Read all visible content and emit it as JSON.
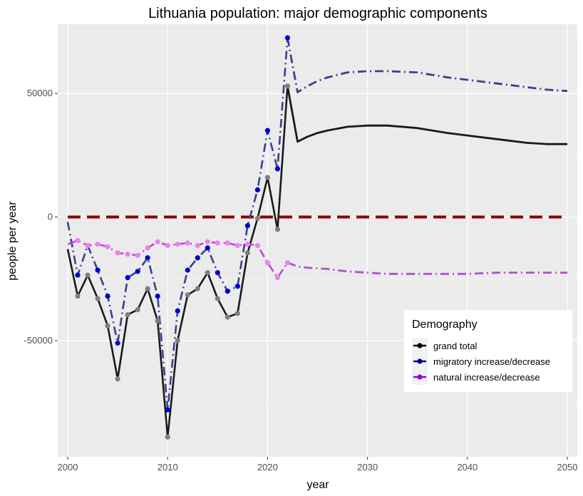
{
  "chart_data": {
    "type": "line",
    "title": "Lithuania population: major demographic components",
    "xlabel": "year",
    "ylabel": "people per year",
    "xlim": [
      1999,
      2051
    ],
    "ylim": [
      -97000,
      78000
    ],
    "x_ticks": [
      2000,
      2010,
      2020,
      2030,
      2040,
      2050
    ],
    "x_tick_labels": [
      "2000",
      "2010",
      "2020",
      "2030",
      "2040",
      "2050"
    ],
    "y_ticks": [
      -50000,
      0,
      50000
    ],
    "y_tick_labels": [
      "-50000",
      "0",
      "50000"
    ],
    "grid": true,
    "zero_line": {
      "y": 0,
      "x_range": [
        2000,
        2050
      ],
      "color": "#8b0000"
    },
    "legend": {
      "title": "Demography",
      "position": "bottom-right",
      "entries": [
        "grand total",
        "migratory increase/decrease",
        "natural increase/decrease"
      ]
    },
    "series": [
      {
        "name": "grand total",
        "color": "#1a1a1a",
        "observed_color": "#7f7f7f",
        "style": "solid",
        "observed": {
          "x": [
            2000,
            2001,
            2002,
            2003,
            2004,
            2005,
            2006,
            2007,
            2008,
            2009,
            2010,
            2011,
            2012,
            2013,
            2014,
            2015,
            2016,
            2017,
            2018,
            2019,
            2020,
            2021,
            2022
          ],
          "y": [
            -13000,
            -32000,
            -23500,
            -33000,
            -44000,
            -65500,
            -39500,
            -37500,
            -29000,
            -42000,
            -89000,
            -50000,
            -31500,
            -29000,
            -22500,
            -33000,
            -40500,
            -39000,
            -14500,
            -500,
            16000,
            -5000,
            53000
          ]
        },
        "projected": {
          "x": [
            2022,
            2023,
            2024,
            2025,
            2026,
            2028,
            2030,
            2032,
            2035,
            2038,
            2040,
            2043,
            2046,
            2048,
            2050
          ],
          "y": [
            53000,
            30500,
            32500,
            34000,
            35000,
            36500,
            37000,
            37000,
            36000,
            34000,
            33000,
            31500,
            30000,
            29500,
            29500
          ]
        }
      },
      {
        "name": "migratory increase/decrease",
        "color": "#3a3f91",
        "observed_color": "#0000cd",
        "style": "dash-dot",
        "observed": {
          "x": [
            2000,
            2001,
            2002,
            2003,
            2004,
            2005,
            2006,
            2007,
            2008,
            2009,
            2010,
            2011,
            2012,
            2013,
            2014,
            2015,
            2016,
            2017,
            2018,
            2019,
            2020,
            2021,
            2022
          ],
          "y": [
            -2000,
            -23500,
            -11500,
            -21500,
            -32000,
            -51000,
            -24500,
            -22000,
            -16500,
            -32000,
            -78000,
            -38000,
            -21500,
            -16500,
            -12500,
            -22500,
            -30000,
            -28000,
            -3500,
            11000,
            35000,
            19500,
            72500
          ]
        },
        "projected": {
          "x": [
            2022,
            2023,
            2024,
            2025,
            2026,
            2028,
            2030,
            2032,
            2035,
            2038,
            2040,
            2043,
            2046,
            2048,
            2050
          ],
          "y": [
            72500,
            50500,
            53000,
            55000,
            56500,
            58500,
            59000,
            59000,
            58500,
            56500,
            55500,
            54000,
            52500,
            51500,
            51000
          ]
        }
      },
      {
        "name": "natural increase/decrease",
        "color": "#b04fd0",
        "observed_color": "#ee82ee",
        "style": "dash-dot",
        "observed": {
          "x": [
            2000,
            2001,
            2002,
            2003,
            2004,
            2005,
            2006,
            2007,
            2008,
            2009,
            2010,
            2011,
            2012,
            2013,
            2014,
            2015,
            2016,
            2017,
            2018,
            2019,
            2020,
            2021,
            2022
          ],
          "y": [
            -11000,
            -9500,
            -11500,
            -11000,
            -12000,
            -14500,
            -15000,
            -15500,
            -12500,
            -10000,
            -11500,
            -11000,
            -10500,
            -11500,
            -10000,
            -10500,
            -10500,
            -11500,
            -11000,
            -11500,
            -18500,
            -24500,
            -18500
          ]
        },
        "projected": {
          "x": [
            2022,
            2023,
            2024,
            2026,
            2028,
            2030,
            2032,
            2035,
            2038,
            2040,
            2043,
            2046,
            2048,
            2050
          ],
          "y": [
            -18500,
            -20000,
            -20500,
            -21000,
            -22000,
            -22500,
            -23000,
            -23000,
            -23000,
            -23000,
            -22500,
            -22500,
            -22500,
            -22500
          ]
        }
      }
    ]
  }
}
